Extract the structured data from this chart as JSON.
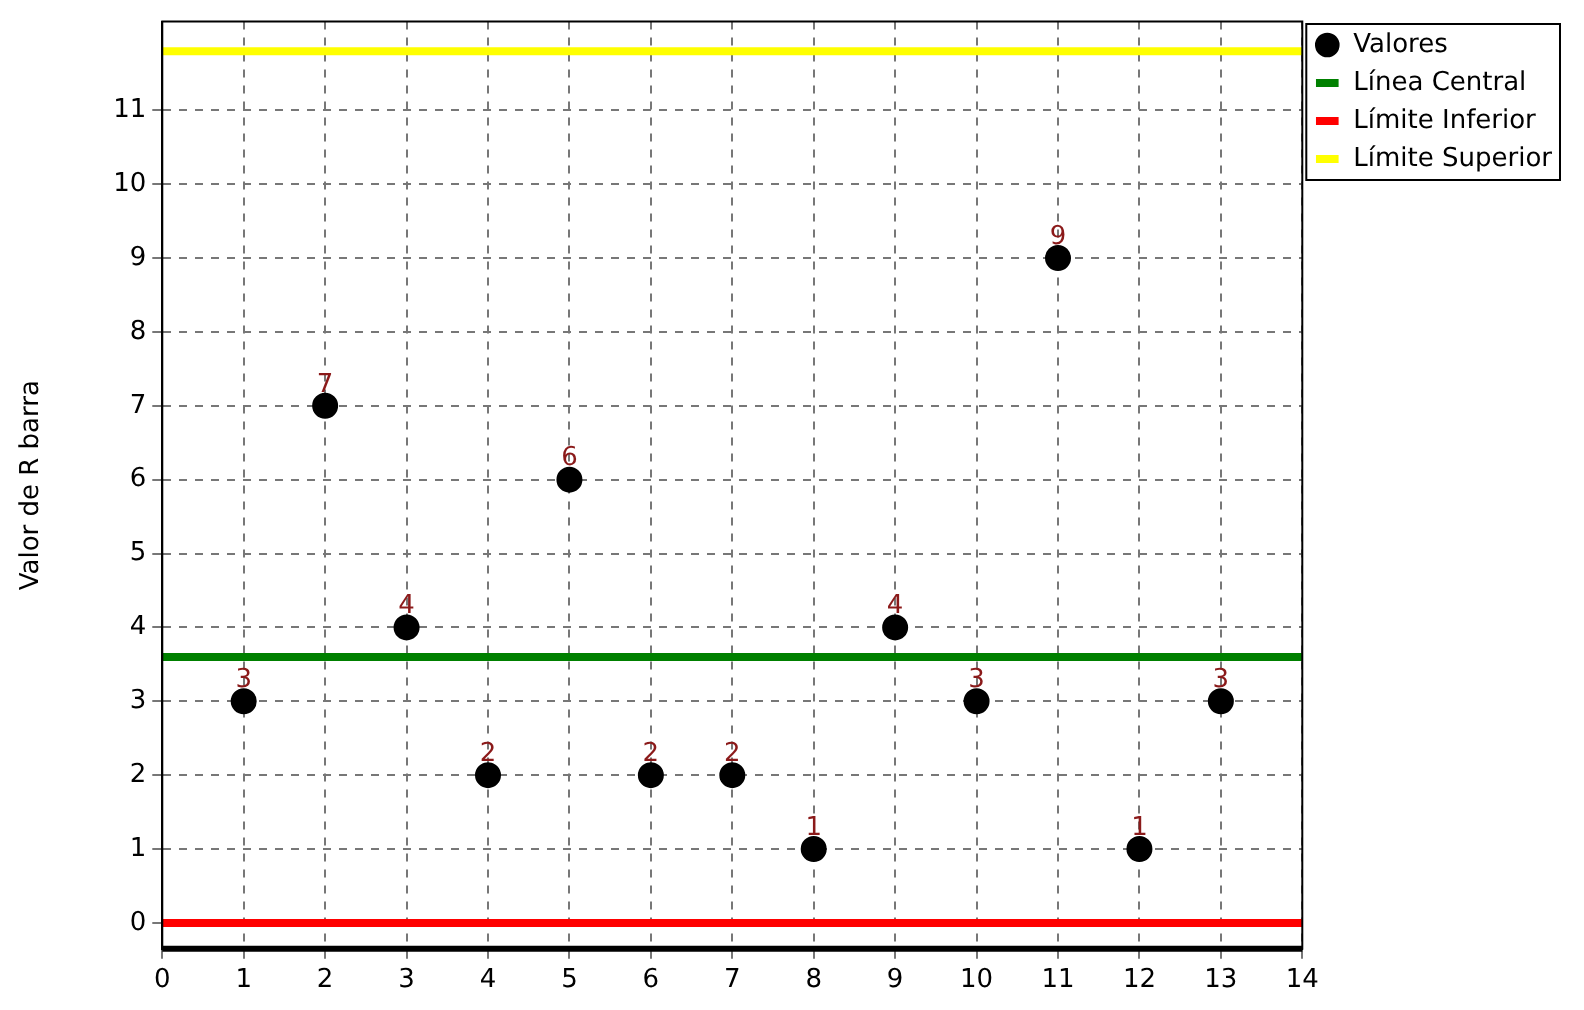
{
  "chart_data": {
    "type": "scatter",
    "ylabel": "Valor de R barra",
    "xlim": [
      0,
      14
    ],
    "xticks": [
      0,
      1,
      2,
      3,
      4,
      5,
      6,
      7,
      8,
      9,
      10,
      11,
      12,
      13,
      14
    ],
    "ylim": [
      -0.35,
      12.2
    ],
    "yticks": [
      0,
      1,
      2,
      3,
      4,
      5,
      6,
      7,
      8,
      9,
      10,
      11
    ],
    "grid": true,
    "legend": "top right",
    "marker": "circle",
    "series": [
      {
        "name": "Valores",
        "color": "#000000",
        "x": [
          1,
          2,
          3,
          4,
          5,
          6,
          7,
          8,
          9,
          10,
          11,
          12,
          13
        ],
        "values": [
          3,
          7,
          4,
          2,
          6,
          2,
          2,
          1,
          4,
          3,
          9,
          1,
          3
        ],
        "value_labels": [
          "3",
          "7",
          "4",
          "2",
          "6",
          "2",
          "2",
          "1",
          "4",
          "3",
          "9",
          "1",
          "3"
        ]
      },
      {
        "name": "Línea Central",
        "type": "line",
        "marker": "none",
        "color": "#008000",
        "x": [
          0,
          14
        ],
        "values": [
          3.6,
          3.6
        ]
      },
      {
        "name": "Límite Inferior",
        "type": "line",
        "marker": "none",
        "color": "#ff0000",
        "x": [
          0,
          14
        ],
        "values": [
          0,
          0
        ]
      },
      {
        "name": "Límite Superior",
        "type": "line",
        "marker": "none",
        "color": "#ffff00",
        "x": [
          0,
          14
        ],
        "values": [
          11.8,
          11.8
        ]
      }
    ]
  }
}
